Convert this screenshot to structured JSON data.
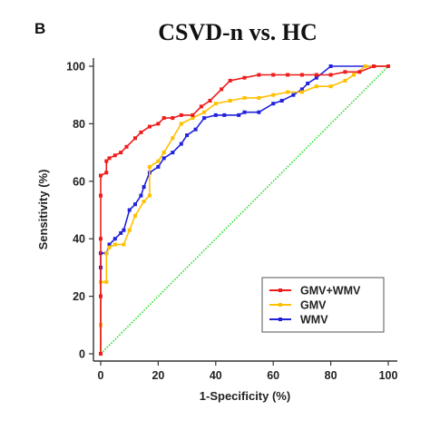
{
  "panel_label": "B",
  "chart_data": {
    "type": "line",
    "title": "CSVD-n vs. HC",
    "xlabel": "1-Specificity (%)",
    "ylabel": "Sensitivity (%)",
    "xlim": [
      0,
      100
    ],
    "ylim": [
      0,
      100
    ],
    "xticks": [
      "0",
      "20",
      "40",
      "60",
      "80",
      "100"
    ],
    "yticks": [
      "0",
      "20",
      "40",
      "60",
      "80",
      "100"
    ],
    "grid": false,
    "legend_position": "bottom-right",
    "reference_line": {
      "x": [
        0,
        100
      ],
      "y": [
        0,
        100
      ],
      "color": "#33dd33",
      "style": "dotted"
    },
    "series": [
      {
        "name": "GMV+WMV",
        "color": "#ee1c1c",
        "x": [
          0,
          0,
          0,
          0,
          0,
          2,
          2,
          3,
          5,
          7,
          9,
          12,
          14,
          17,
          20,
          22,
          25,
          28,
          32,
          35,
          38,
          42,
          45,
          50,
          55,
          60,
          65,
          70,
          75,
          80,
          85,
          90,
          95,
          100
        ],
        "y": [
          0,
          20,
          40,
          55,
          62,
          63,
          67,
          68,
          69,
          70,
          72,
          75,
          77,
          79,
          80,
          82,
          82,
          83,
          83,
          86,
          88,
          92,
          95,
          96,
          97,
          97,
          97,
          97,
          97,
          97,
          98,
          98,
          100,
          100
        ]
      },
      {
        "name": "GMV",
        "color": "#ffc000",
        "x": [
          0,
          0,
          0,
          2,
          2,
          3,
          5,
          8,
          10,
          12,
          15,
          17,
          17,
          20,
          22,
          25,
          28,
          32,
          36,
          40,
          45,
          50,
          55,
          60,
          65,
          70,
          75,
          80,
          85,
          88,
          92,
          100
        ],
        "y": [
          0,
          10,
          25,
          25,
          35,
          37,
          38,
          38,
          43,
          48,
          53,
          55,
          65,
          67,
          70,
          75,
          80,
          82,
          84,
          87,
          88,
          89,
          89,
          90,
          91,
          91,
          93,
          93,
          95,
          97,
          100,
          100
        ]
      },
      {
        "name": "WMV",
        "color": "#2222dd",
        "x": [
          0,
          0,
          0,
          0,
          0,
          2,
          3,
          5,
          7,
          8,
          10,
          12,
          14,
          15,
          17,
          20,
          22,
          25,
          28,
          30,
          33,
          36,
          40,
          43,
          48,
          50,
          55,
          60,
          63,
          67,
          70,
          72,
          75,
          80,
          100
        ],
        "y": [
          0,
          10,
          20,
          30,
          35,
          35,
          38,
          40,
          42,
          43,
          50,
          52,
          55,
          58,
          63,
          65,
          68,
          70,
          73,
          76,
          78,
          82,
          83,
          83,
          83,
          84,
          84,
          87,
          88,
          90,
          92,
          94,
          96,
          100,
          100
        ]
      }
    ]
  }
}
